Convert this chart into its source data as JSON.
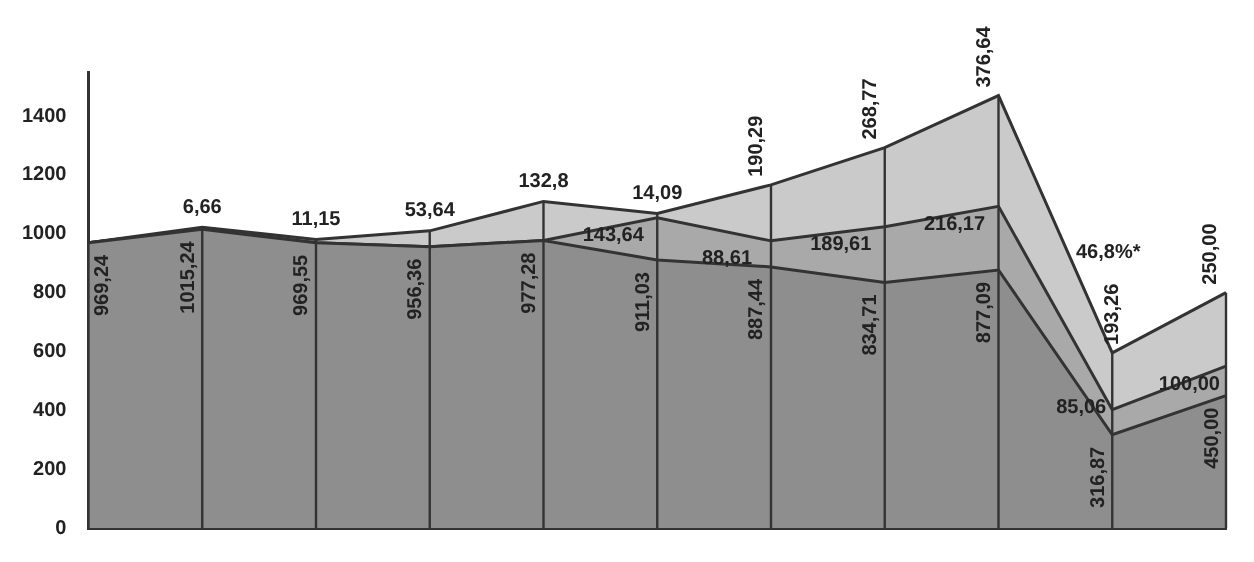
{
  "chart_data": {
    "type": "area",
    "stacked": true,
    "categories": [
      null,
      null,
      null,
      null,
      null,
      null,
      null,
      null,
      null,
      null,
      null
    ],
    "series": [
      {
        "color": "#8e8e8e",
        "values": [
          969.24,
          1015.24,
          969.55,
          956.36,
          977.28,
          911.03,
          887.44,
          834.71,
          877.09,
          316.87,
          450.0
        ],
        "value_labels": [
          "969,24",
          "1015,24",
          "969,55",
          "956,36",
          "977,28",
          "911,03",
          "887,44",
          "834,71",
          "877,09",
          "316,87",
          "450,00"
        ]
      },
      {
        "color": "#a9a9a9",
        "values": [
          0,
          0,
          0,
          0,
          0,
          143.64,
          88.61,
          189.61,
          216.17,
          85.06,
          100.0
        ],
        "value_labels": [
          null,
          null,
          null,
          null,
          null,
          "143,64",
          "88,61",
          "189,61",
          "216,17",
          "85,06",
          "100,00"
        ]
      },
      {
        "color": "#cacaca",
        "values": [
          0,
          6.66,
          11.15,
          53.64,
          132.8,
          14.09,
          190.29,
          268.77,
          376.64,
          193.26,
          250.0
        ],
        "value_labels": [
          null,
          "6,66",
          "11,15",
          "53,64",
          "132,8",
          "14,09",
          "190,29",
          "268,77",
          "376,64",
          "193,26",
          "250,00"
        ]
      }
    ],
    "ylim": [
      0,
      1550
    ],
    "yticks": [
      0,
      200,
      400,
      600,
      800,
      1000,
      1200,
      1400
    ],
    "grid": "x",
    "legend": false,
    "tick_labels": "y",
    "annotations": [
      "46,8%*"
    ]
  }
}
